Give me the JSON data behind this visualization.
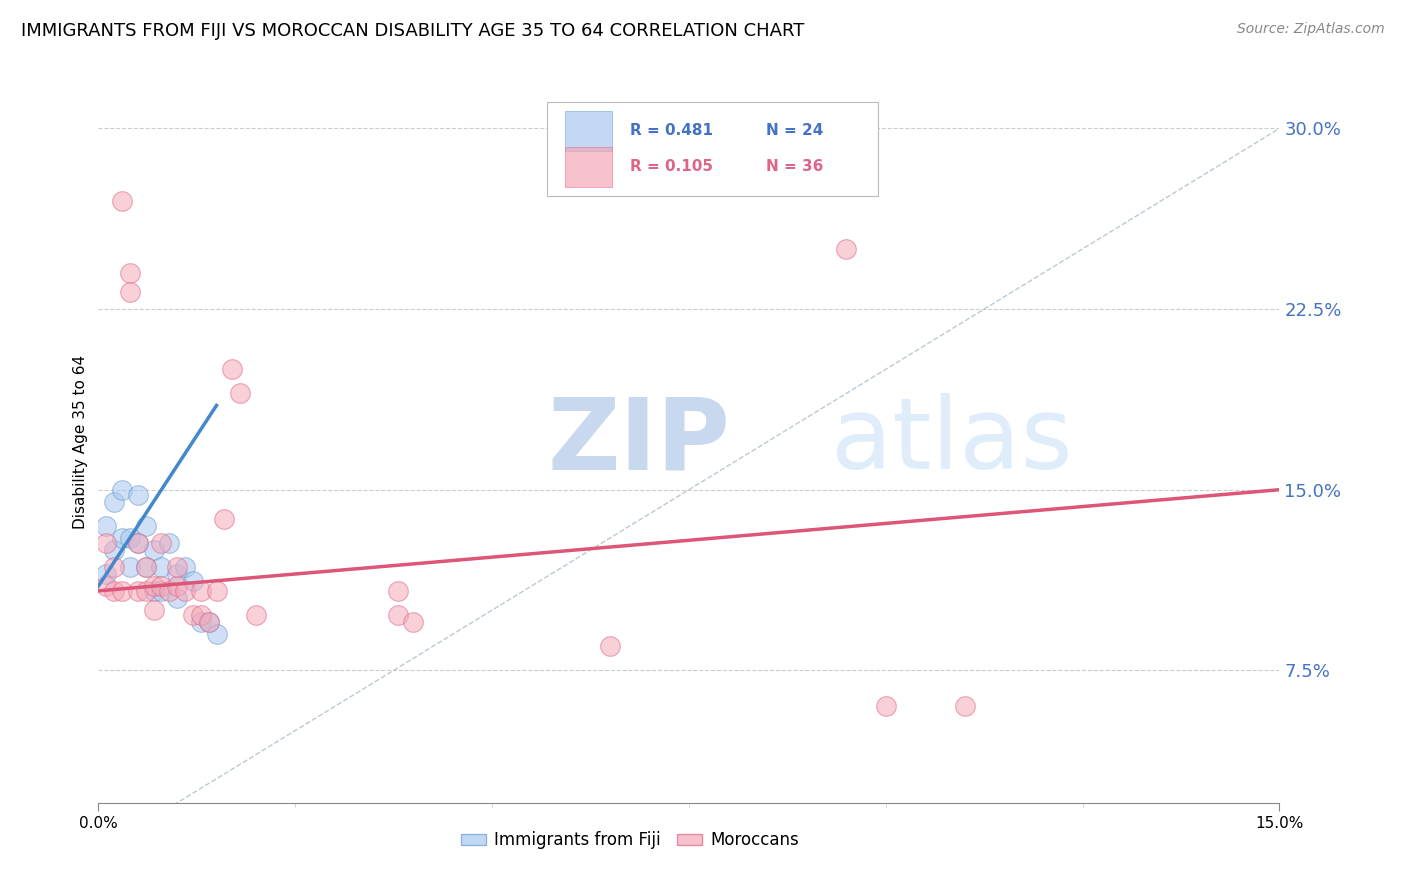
{
  "title": "IMMIGRANTS FROM FIJI VS MOROCCAN DISABILITY AGE 35 TO 64 CORRELATION CHART",
  "source": "Source: ZipAtlas.com",
  "ylabel": "Disability Age 35 to 64",
  "ytick_labels": [
    "7.5%",
    "15.0%",
    "22.5%",
    "30.0%"
  ],
  "ytick_values": [
    0.075,
    0.15,
    0.225,
    0.3
  ],
  "xmin": 0.0,
  "xmax": 0.15,
  "ymin": 0.02,
  "ymax": 0.32,
  "legend_entries": [
    {
      "label": "Immigrants from Fiji",
      "R": "0.481",
      "N": "24",
      "color": "#a8c8f0"
    },
    {
      "label": "Moroccans",
      "R": "0.105",
      "N": "36",
      "color": "#f5a8b8"
    }
  ],
  "fiji_scatter_x": [
    0.001,
    0.001,
    0.002,
    0.002,
    0.003,
    0.003,
    0.004,
    0.004,
    0.005,
    0.005,
    0.006,
    0.006,
    0.007,
    0.007,
    0.008,
    0.008,
    0.009,
    0.01,
    0.01,
    0.011,
    0.012,
    0.013,
    0.014,
    0.015
  ],
  "fiji_scatter_y": [
    0.135,
    0.115,
    0.145,
    0.125,
    0.15,
    0.13,
    0.13,
    0.118,
    0.148,
    0.128,
    0.135,
    0.118,
    0.125,
    0.108,
    0.118,
    0.108,
    0.128,
    0.115,
    0.105,
    0.118,
    0.112,
    0.095,
    0.095,
    0.09
  ],
  "moroccan_scatter_x": [
    0.001,
    0.001,
    0.002,
    0.002,
    0.003,
    0.003,
    0.004,
    0.004,
    0.005,
    0.005,
    0.006,
    0.006,
    0.007,
    0.007,
    0.008,
    0.008,
    0.009,
    0.01,
    0.01,
    0.011,
    0.012,
    0.013,
    0.013,
    0.014,
    0.015,
    0.016,
    0.017,
    0.018,
    0.02,
    0.038,
    0.038,
    0.04,
    0.065,
    0.095,
    0.1,
    0.11
  ],
  "moroccan_scatter_y": [
    0.128,
    0.11,
    0.118,
    0.108,
    0.27,
    0.108,
    0.24,
    0.232,
    0.128,
    0.108,
    0.118,
    0.108,
    0.11,
    0.1,
    0.128,
    0.11,
    0.108,
    0.11,
    0.118,
    0.108,
    0.098,
    0.108,
    0.098,
    0.095,
    0.108,
    0.138,
    0.2,
    0.19,
    0.098,
    0.108,
    0.098,
    0.095,
    0.085,
    0.25,
    0.06,
    0.06
  ],
  "fiji_trend_x": [
    0.0,
    0.015
  ],
  "fiji_trend_y": [
    0.11,
    0.185
  ],
  "moroccan_trend_x": [
    0.0,
    0.15
  ],
  "moroccan_trend_y": [
    0.108,
    0.15
  ],
  "ref_line_x": [
    0.0,
    0.15
  ],
  "ref_line_y": [
    0.0,
    0.3
  ],
  "fiji_color": "#a8c8f0",
  "fiji_edge_color": "#6699cc",
  "moroccan_color": "#f5a8b8",
  "moroccan_edge_color": "#dd6688",
  "fiji_trend_color": "#4488cc",
  "moroccan_trend_color": "#dd5577",
  "ref_line_color": "#aabbcc",
  "right_tick_color": "#4472c4",
  "background_color": "#ffffff",
  "watermark_zip": "ZIP",
  "watermark_atlas": "atlas",
  "watermark_color": "#c8d8ee",
  "title_fontsize": 13,
  "source_fontsize": 10,
  "axis_label_fontsize": 11,
  "tick_fontsize": 11,
  "legend_R1": "R = 0.481",
  "legend_N1": "N = 24",
  "legend_R2": "R = 0.105",
  "legend_N2": "N = 36"
}
